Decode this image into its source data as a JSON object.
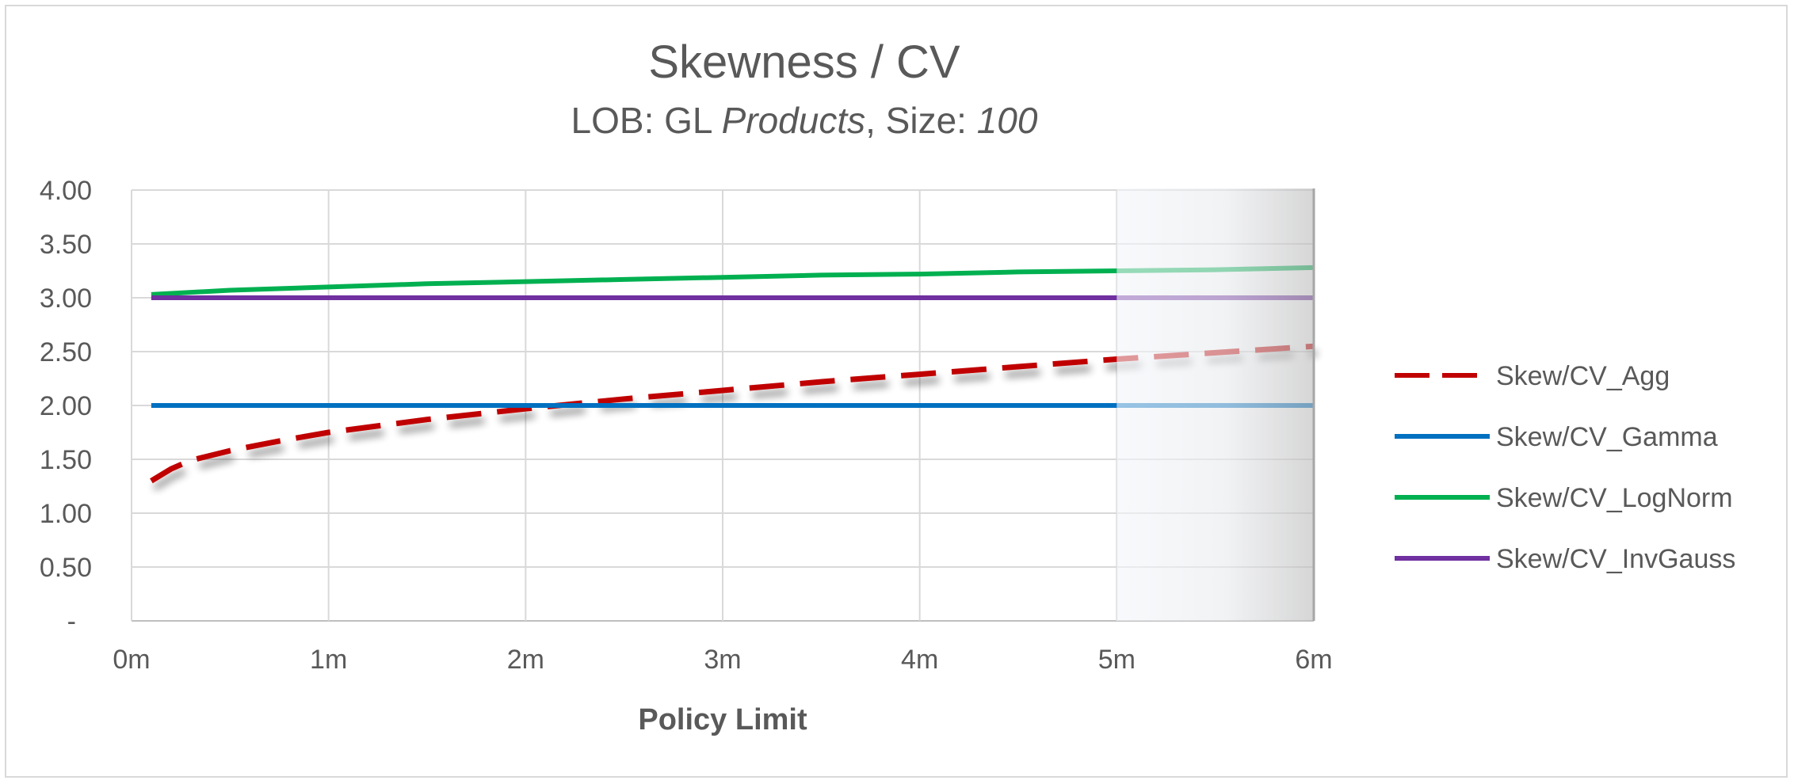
{
  "chart_data": {
    "type": "line",
    "title": "Skewness / CV",
    "subtitle": {
      "parts": [
        {
          "text": "LOB: GL ",
          "italic": false
        },
        {
          "text": "Products",
          "italic": true
        },
        {
          "text": ", Size: ",
          "italic": false
        },
        {
          "text": "100",
          "italic": true
        }
      ]
    },
    "xlabel": "Policy Limit",
    "ylabel": "",
    "x_ticks": [
      "0m",
      "1m",
      "2m",
      "3m",
      "4m",
      "5m",
      "6m"
    ],
    "y_ticks": [
      "-",
      "0.50",
      "1.00",
      "1.50",
      "2.00",
      "2.50",
      "3.00",
      "3.50",
      "4.00"
    ],
    "xlim": [
      0,
      6
    ],
    "ylim": [
      0,
      4
    ],
    "grid": true,
    "legend_position": "right",
    "shaded_region": {
      "x_from": 5,
      "x_to": 6,
      "color": "#bfbfbf"
    },
    "series": [
      {
        "name": "Skew/CV_Agg",
        "color": "#c00000",
        "dashed": true,
        "shadow": true,
        "x": [
          0.1,
          0.2,
          0.3,
          0.5,
          0.75,
          1,
          1.5,
          2,
          2.5,
          3,
          3.5,
          4,
          4.5,
          5,
          5.5,
          6
        ],
        "values": [
          1.3,
          1.41,
          1.49,
          1.58,
          1.67,
          1.75,
          1.87,
          1.97,
          2.06,
          2.14,
          2.22,
          2.29,
          2.36,
          2.43,
          2.49,
          2.55
        ]
      },
      {
        "name": "Skew/CV_Gamma",
        "color": "#0070c0",
        "dashed": false,
        "shadow": false,
        "x": [
          0.1,
          6
        ],
        "values": [
          2.0,
          2.0
        ]
      },
      {
        "name": "Skew/CV_LogNorm",
        "color": "#00b050",
        "dashed": false,
        "shadow": false,
        "x": [
          0.1,
          0.5,
          1,
          1.5,
          2,
          2.5,
          3,
          3.5,
          4,
          4.5,
          5,
          5.5,
          6
        ],
        "values": [
          3.03,
          3.07,
          3.1,
          3.13,
          3.15,
          3.17,
          3.19,
          3.21,
          3.22,
          3.24,
          3.25,
          3.26,
          3.28
        ]
      },
      {
        "name": "Skew/CV_InvGauss",
        "color": "#7030a0",
        "dashed": false,
        "shadow": false,
        "x": [
          0.1,
          6
        ],
        "values": [
          3.0,
          3.0
        ]
      }
    ]
  }
}
